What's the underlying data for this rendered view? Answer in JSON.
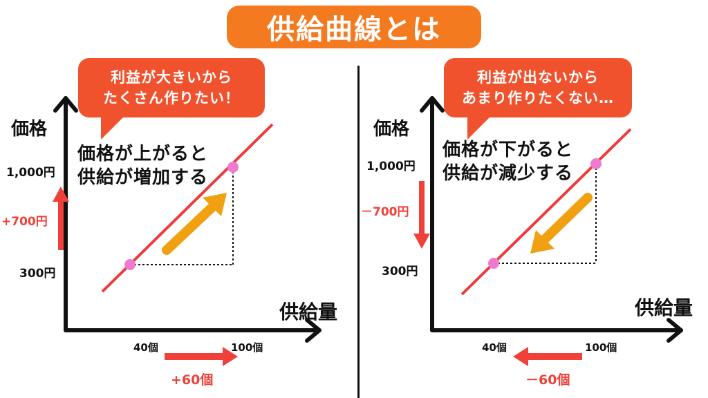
{
  "title": "供給曲線とは",
  "left_panel": {
    "bubble_lines": [
      "利益が大きいから",
      "たくさん作りたい！"
    ],
    "y_axis_label": "価格",
    "x_axis_label": "供給量",
    "caption_lines": [
      "価格が上がると",
      "供給が増加する"
    ],
    "price_high": "1,000円",
    "price_low": "300円",
    "price_change": "+700円",
    "qty_low": "40個",
    "qty_high": "100個",
    "qty_change": "+60個"
  },
  "right_panel": {
    "bubble_lines": [
      "利益が出ないから",
      "あまり作りたくない…"
    ],
    "y_axis_label": "価格",
    "x_axis_label": "供給量",
    "caption_lines": [
      "価格が下がると",
      "供給が減少する"
    ],
    "price_high": "1,000円",
    "price_low": "300円",
    "price_change": "－700円",
    "qty_low": "40個",
    "qty_high": "100個",
    "qty_change": "－60個"
  },
  "colors": {
    "title_bg": "#f47a20",
    "bubble_bg": "#f0522e",
    "supply_line": "#ee3a3a",
    "point": "#f07ad0",
    "movement_arrow": "#f0a010",
    "change_arrow": "#f0403a"
  }
}
